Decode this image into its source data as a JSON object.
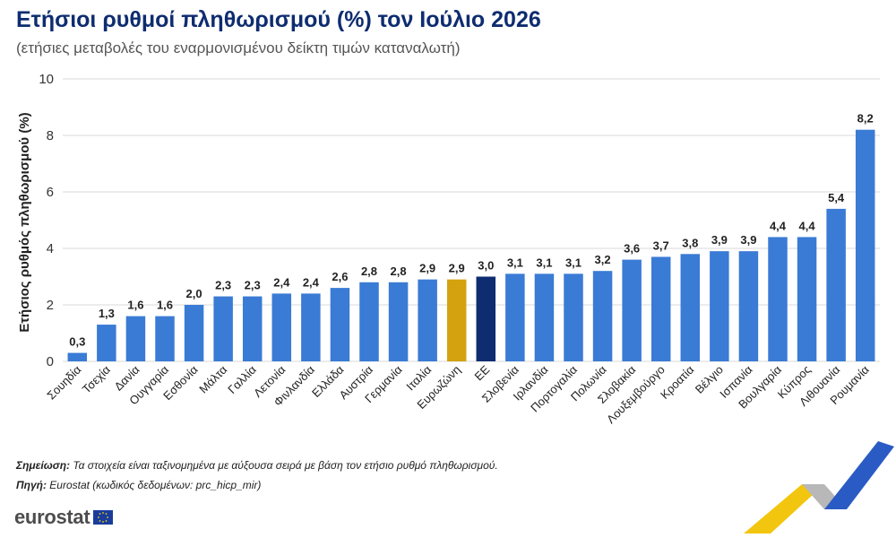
{
  "header": {
    "title": "Ετήσιοι ρυθμοί πληθωρισμού (%) τον Ιούλιο 2026",
    "subtitle": "(ετήσιες μεταβολές του εναρμονισμένου δείκτη τιμών καταναλωτή)"
  },
  "chart_data": {
    "type": "bar",
    "title": "Ετήσιοι ρυθμοί πληθωρισμού (%) τον Ιούλιο 2026",
    "subtitle": "(ετήσιες μεταβολές του εναρμονισμένου δείκτη τιμών καταναλωτή)",
    "ylabel": "Ετήσιος ρυθμός πληθωρισμού (%)",
    "xlabel": "",
    "ylim": [
      0,
      10
    ],
    "yticks": [
      0,
      2,
      4,
      6,
      8,
      10
    ],
    "grid": "horizontal",
    "categories": [
      "Σουηδία",
      "Τσεχία",
      "Δανία",
      "Ουγγαρία",
      "Εσθονία",
      "Μάλτα",
      "Γαλλία",
      "Λετονία",
      "Φινλανδία",
      "Ελλάδα",
      "Αυστρία",
      "Γερμανία",
      "Ιταλία",
      "Ευρωζώνη",
      "ΕΕ",
      "Σλοβενία",
      "Ιρλανδία",
      "Πορτογαλία",
      "Πολωνία",
      "Σλοβακία",
      "Λουξεμβούργο",
      "Κροατία",
      "Βέλγιο",
      "Ισπανία",
      "Βουλγαρία",
      "Κύπρος",
      "Λιθουανία",
      "Ρουμανία"
    ],
    "values": [
      0.3,
      1.3,
      1.6,
      1.6,
      2.0,
      2.3,
      2.3,
      2.4,
      2.4,
      2.6,
      2.8,
      2.8,
      2.9,
      2.9,
      3.0,
      3.1,
      3.1,
      3.1,
      3.2,
      3.6,
      3.7,
      3.8,
      3.9,
      3.9,
      4.4,
      4.4,
      5.4,
      8.2
    ],
    "data_labels": [
      "0,3",
      "1,3",
      "1,6",
      "1,6",
      "2,0",
      "2,3",
      "2,3",
      "2,4",
      "2,4",
      "2,6",
      "2,8",
      "2,8",
      "2,9",
      "2,9",
      "3,0",
      "3,1",
      "3,1",
      "3,1",
      "3,2",
      "3,6",
      "3,7",
      "3,8",
      "3,9",
      "3,9",
      "4,4",
      "4,4",
      "5,4",
      "8,2"
    ],
    "colors": {
      "default": "#3a7bd5",
      "Ευρωζώνη": "#d4a20f",
      "ΕΕ": "#0e2c70",
      "grid": "#d9d9d9",
      "axis_text": "#333333"
    }
  },
  "footer": {
    "note_label": "Σημείωση:",
    "note_text": " Τα στοιχεία είναι ταξινομημένα με αύξουσα σειρά με βάση τον ετήσιο ρυθμό πληθωρισμού.",
    "source_label": "Πηγή:",
    "source_text": " Eurostat (κωδικός δεδομένων: prc_hicp_mir)",
    "logo_text": "eurostat"
  },
  "icons": {
    "logo": "eurostat-logo",
    "flag": "eu-flag-icon",
    "decoration": "eurostat-chevron-decoration"
  }
}
